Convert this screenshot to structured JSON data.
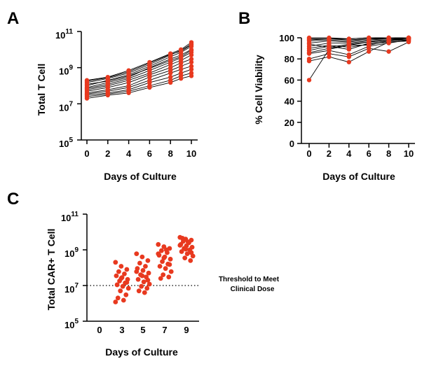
{
  "colors": {
    "marker": "#e8391f",
    "line": "#000000",
    "axis": "#000000"
  },
  "chart_data": [
    {
      "panel": "A",
      "type": "line",
      "xlabel": "Days of Culture",
      "ylabel": "Total T Cell",
      "yscale": "log",
      "x": [
        0,
        2,
        4,
        6,
        8,
        9,
        10
      ],
      "xticks": [
        "0",
        "2",
        "4",
        "6",
        "8",
        "10"
      ],
      "yticks": [
        {
          "base": "10",
          "exp": "5"
        },
        {
          "base": "10",
          "exp": "7"
        },
        {
          "base": "10",
          "exp": "9"
        },
        {
          "base": "10",
          "exp": "11"
        }
      ],
      "ylim": [
        100000,
        100000000000
      ],
      "series": [
        {
          "values": [
            200000000,
            300000000,
            700000000,
            2000000000,
            6000000000,
            10000000000,
            25000000000
          ]
        },
        {
          "values": [
            150000000,
            250000000,
            500000000,
            1500000000,
            5000000000,
            9000000000,
            20000000000
          ]
        },
        {
          "values": [
            100000000,
            200000000,
            400000000,
            1200000000,
            4000000000,
            7000000000,
            15000000000
          ]
        },
        {
          "values": [
            80000000,
            150000000,
            300000000,
            1000000000,
            3000000000,
            5000000000,
            10000000000
          ]
        },
        {
          "values": [
            70000000,
            120000000,
            250000000,
            700000000,
            2000000000,
            3500000000,
            7000000000
          ]
        },
        {
          "values": [
            60000000,
            100000000,
            200000000,
            500000000,
            1500000000,
            2500000000,
            5000000000
          ]
        },
        {
          "values": [
            50000000,
            80000000,
            150000000,
            400000000,
            1000000000,
            1800000000,
            3000000000
          ]
        },
        {
          "values": [
            40000000,
            60000000,
            100000000,
            300000000,
            700000000,
            1200000000,
            2000000000
          ]
        },
        {
          "values": [
            35000000,
            50000000,
            80000000,
            200000000,
            500000000,
            800000000,
            1200000000
          ]
        },
        {
          "values": [
            30000000,
            40000000,
            60000000,
            150000000,
            300000000,
            500000000,
            800000000
          ]
        },
        {
          "values": [
            25000000,
            35000000,
            50000000,
            100000000,
            200000000,
            350000000,
            500000000
          ]
        },
        {
          "values": [
            20000000,
            30000000,
            40000000,
            80000000,
            150000000,
            250000000,
            350000000
          ]
        },
        {
          "values": [
            180000000,
            280000000,
            600000000,
            1800000000,
            5500000000,
            8000000000,
            18000000000
          ]
        },
        {
          "values": [
            120000000,
            180000000,
            350000000,
            900000000,
            2500000000,
            4000000000,
            9000000000
          ]
        }
      ]
    },
    {
      "panel": "B",
      "type": "line",
      "xlabel": "Days of Culture",
      "ylabel": "% Cell Viability",
      "ylim": [
        0,
        100
      ],
      "x": [
        0,
        2,
        4,
        6,
        8,
        10
      ],
      "xticks": [
        "0",
        "2",
        "4",
        "6",
        "8",
        "10"
      ],
      "yticks": [
        "0",
        "20",
        "40",
        "60",
        "80",
        "100"
      ],
      "series": [
        {
          "values": [
            60,
            89,
            93,
            96,
            98,
            99
          ]
        },
        {
          "values": [
            78,
            82,
            77,
            87,
            96,
            97
          ]
        },
        {
          "values": [
            80,
            85,
            82,
            90,
            87,
            96
          ]
        },
        {
          "values": [
            85,
            88,
            84,
            92,
            95,
            98
          ]
        },
        {
          "values": [
            88,
            92,
            89,
            95,
            97,
            99
          ]
        },
        {
          "values": [
            90,
            93,
            91,
            94,
            96,
            97
          ]
        },
        {
          "values": [
            92,
            95,
            95,
            97,
            98,
            99
          ]
        },
        {
          "values": [
            95,
            97,
            96,
            98,
            99,
            99
          ]
        },
        {
          "values": [
            97,
            98,
            97,
            99,
            99,
            100
          ]
        },
        {
          "values": [
            98,
            99,
            98,
            99,
            100,
            100
          ]
        },
        {
          "values": [
            99,
            99,
            99,
            100,
            100,
            100
          ]
        },
        {
          "values": [
            86,
            90,
            93,
            93,
            97,
            98
          ]
        },
        {
          "values": [
            94,
            91,
            94,
            96,
            98,
            99
          ]
        },
        {
          "values": [
            100,
            100,
            99,
            100,
            100,
            100
          ]
        }
      ]
    },
    {
      "panel": "C",
      "type": "scatter",
      "xlabel": "Days of Culture",
      "ylabel": "Total CAR+ T Cell",
      "yscale": "log",
      "categories": [
        "0",
        "3",
        "5",
        "7",
        "9"
      ],
      "yticks": [
        {
          "base": "10",
          "exp": "5"
        },
        {
          "base": "10",
          "exp": "7"
        },
        {
          "base": "10",
          "exp": "9"
        },
        {
          "base": "10",
          "exp": "11"
        }
      ],
      "ylim": [
        100000,
        100000000000
      ],
      "points": {
        "3": [
          200000000,
          120000000,
          80000000,
          60000000,
          45000000,
          35000000,
          28000000,
          22000000,
          18000000,
          14000000,
          11000000,
          9000000,
          7000000,
          5000000,
          3000000,
          2000000,
          1500000,
          1200000,
          25000000,
          15000000
        ],
        "5": [
          600000000,
          400000000,
          250000000,
          180000000,
          120000000,
          90000000,
          70000000,
          50000000,
          40000000,
          30000000,
          22000000,
          16000000,
          12000000,
          9000000,
          7000000,
          5000000,
          4000000,
          60000000,
          35000000,
          20000000
        ],
        "7": [
          2000000000,
          1500000000,
          1200000000,
          900000000,
          700000000,
          500000000,
          400000000,
          300000000,
          220000000,
          160000000,
          120000000,
          90000000,
          60000000,
          40000000,
          30000000,
          25000000,
          1000000000,
          600000000,
          350000000,
          150000000
        ],
        "9": [
          5000000000,
          4000000000,
          3500000000,
          3000000000,
          2500000000,
          2000000000,
          1700000000,
          1400000000,
          1200000000,
          1000000000,
          800000000,
          600000000,
          450000000,
          350000000,
          250000000,
          4500000000,
          2800000000,
          1800000000,
          1100000000,
          700000000
        ]
      },
      "threshold": {
        "value": 10000000,
        "label_line1": "Threshold to Meet",
        "label_line2": "Clinical Dose"
      }
    }
  ]
}
